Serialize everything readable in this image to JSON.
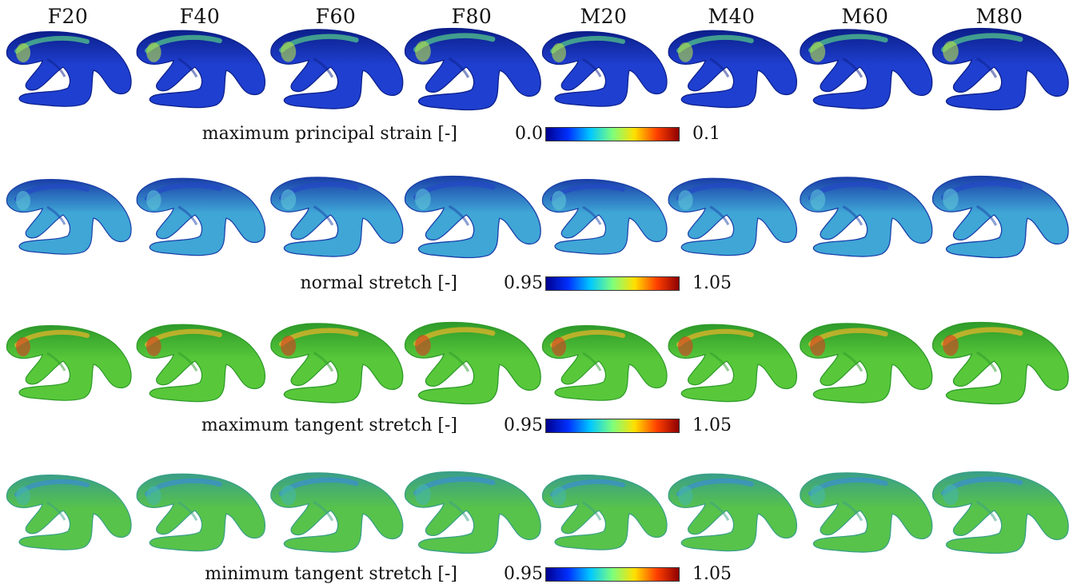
{
  "columns": [
    "F20",
    "F40",
    "F60",
    "F80",
    "M20",
    "M40",
    "M60",
    "M80"
  ],
  "colormap": [
    "#00008f",
    "#0030ff",
    "#00c8ff",
    "#7dff7d",
    "#ffe000",
    "#ff4000",
    "#8f0000"
  ],
  "rows": [
    {
      "label": "maximum principal strain [-]",
      "min": "0.0",
      "max": "0.1",
      "base_color": "#1f3fd0",
      "shade_color": "#0b1f8a",
      "accent_color": "#57d08a",
      "hot_color": "#b7e24a"
    },
    {
      "label": "normal stretch [-]",
      "min": "0.95",
      "max": "1.05",
      "base_color": "#3fa6d6",
      "shade_color": "#1a3fa8",
      "accent_color": "#2349c6",
      "hot_color": "#5fc7d8"
    },
    {
      "label": "maximum tangent stretch [-]",
      "min": "0.95",
      "max": "1.05",
      "base_color": "#58c83a",
      "shade_color": "#2e9a2a",
      "accent_color": "#f0b52a",
      "hot_color": "#d83a22"
    },
    {
      "label": "minimum tangent stretch [-]",
      "min": "0.95",
      "max": "1.05",
      "base_color": "#57c34a",
      "shade_color": "#3a9f88",
      "accent_color": "#3b8fd0",
      "hot_color": "#46b8a8"
    }
  ]
}
